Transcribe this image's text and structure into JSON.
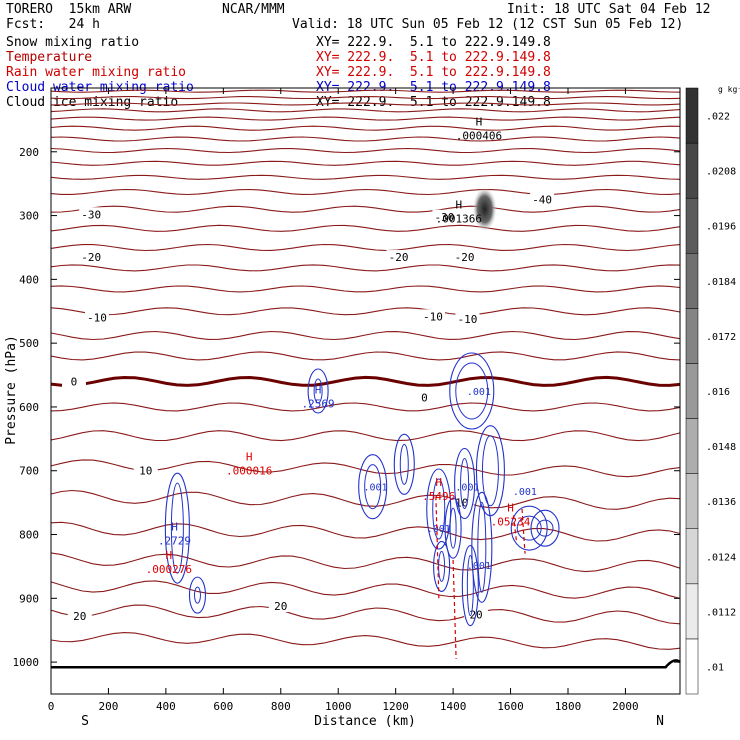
{
  "header": {
    "model": "TORERO  15km ARW",
    "center": "NCAR/MMM",
    "init": "Init: 18 UTC Sat 04 Feb 12",
    "fcst": "Fcst:   24 h",
    "valid": "Valid: 18 UTC Sun 05 Feb 12 (12 CST Sun 05 Feb 12)"
  },
  "fields": [
    {
      "name": "Snow mixing ratio",
      "xy": "XY= 222.9.  5.1 to 222.9.149.8",
      "color": "#000000"
    },
    {
      "name": "Temperature",
      "xy": "XY= 222.9.  5.1 to 222.9.149.8",
      "color": "#b00000"
    },
    {
      "name": "Rain water mixing ratio",
      "xy": "XY= 222.9.  5.1 to 222.9.149.8",
      "color": "#d00000"
    },
    {
      "name": "Cloud water mixing ratio",
      "xy": "XY= 222.9.  5.1 to 222.9.149.8",
      "color": "#0000cc"
    },
    {
      "name": "Cloud ice mixing ratio",
      "xy": "XY= 222.9.  5.1 to 222.9.149.8",
      "color": "#000000"
    }
  ],
  "chart_data": {
    "type": "contour cross-section",
    "xlabel": "Distance (km)",
    "ylabel": "Pressure (hPa)",
    "x_ticks": [
      0,
      200,
      400,
      600,
      800,
      1000,
      1200,
      1400,
      1600,
      1800,
      2000
    ],
    "y_ticks": [
      200,
      300,
      400,
      500,
      600,
      700,
      800,
      900,
      1000
    ],
    "xlim": [
      0,
      2190
    ],
    "ylim": [
      1050,
      100
    ],
    "x_ends": {
      "left": "S",
      "right": "N"
    },
    "colorbar": {
      "unit": "g kg⁻¹",
      "ticks": [
        ".01",
        ".0112",
        ".0124",
        ".0136",
        ".0148",
        ".016",
        ".0172",
        ".0184",
        ".0196",
        ".0208",
        ".022"
      ]
    },
    "temperature_contours": [
      {
        "label": "-40",
        "x": 1710,
        "p": 275
      },
      {
        "label": "-30",
        "x": 140,
        "p": 298
      },
      {
        "label": "-30",
        "x": 1370,
        "p": 302
      },
      {
        "label": "-20",
        "x": 140,
        "p": 365
      },
      {
        "label": "-20",
        "x": 1210,
        "p": 365
      },
      {
        "label": "-20",
        "x": 1440,
        "p": 365
      },
      {
        "label": "-10",
        "x": 160,
        "p": 460
      },
      {
        "label": "-10",
        "x": 1330,
        "p": 458
      },
      {
        "label": "-10",
        "x": 1450,
        "p": 462
      },
      {
        "label": "0",
        "x": 80,
        "p": 560
      },
      {
        "label": "0",
        "x": 1300,
        "p": 585
      },
      {
        "label": "10",
        "x": 330,
        "p": 700
      },
      {
        "label": "10",
        "x": 1430,
        "p": 750
      },
      {
        "label": "20",
        "x": 100,
        "p": 928
      },
      {
        "label": "20",
        "x": 800,
        "p": 912
      },
      {
        "label": "20",
        "x": 1480,
        "p": 925
      }
    ],
    "extrema": [
      {
        "field": "Cloud ice mixing ratio",
        "type": "H",
        "value": ".000406",
        "x": 1490,
        "p": 165
      },
      {
        "field": "Cloud ice mixing ratio",
        "type": "H",
        "value": ".001366",
        "x": 1420,
        "p": 295
      },
      {
        "field": "Cloud water mixing ratio",
        "type": "H",
        "value": ".2569",
        "x": 930,
        "p": 585
      },
      {
        "field": "Rain water mixing ratio",
        "type": "H",
        "value": ".000016",
        "x": 690,
        "p": 690
      },
      {
        "field": "Rain water mixing ratio",
        "type": "H",
        "value": ".5496",
        "x": 1350,
        "p": 730
      },
      {
        "field": "Rain water mixing ratio",
        "type": "H",
        "value": ".05234",
        "x": 1600,
        "p": 770
      },
      {
        "field": "Cloud water mixing ratio",
        "type": "H",
        "value": ".2729",
        "x": 430,
        "p": 800
      },
      {
        "field": "Rain water mixing ratio",
        "type": "H",
        "value": ".000276",
        "x": 410,
        "p": 845
      }
    ],
    "cloud_water_labels": [
      {
        "value": ".001",
        "x": 1490,
        "p": 575
      },
      {
        "value": ".001",
        "x": 1130,
        "p": 725
      },
      {
        "value": ".001",
        "x": 1350,
        "p": 790
      },
      {
        "value": ".001",
        "x": 1490,
        "p": 848
      },
      {
        "value": ".001",
        "x": 1650,
        "p": 732
      },
      {
        "value": ".001",
        "x": 1450,
        "p": 725
      }
    ]
  }
}
